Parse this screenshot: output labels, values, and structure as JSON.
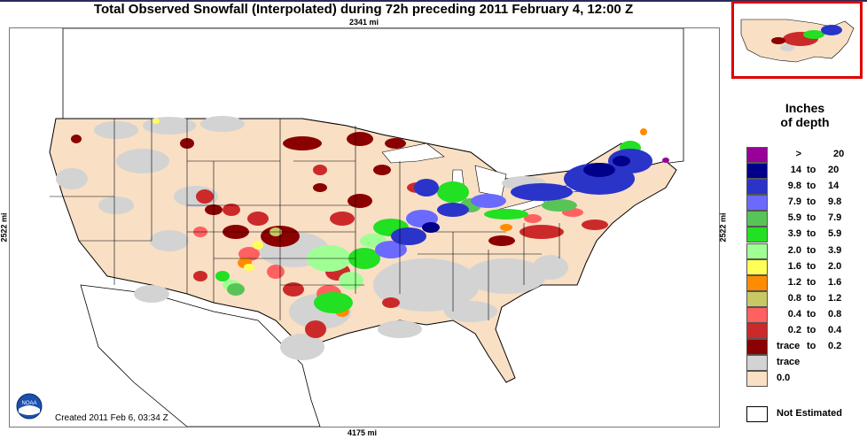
{
  "title": "Total Observed Snowfall (Interpolated) during 72h preceding 2011 February 4, 12:00 Z",
  "distances": {
    "top": "2341 mi",
    "bottom": "4175 mi",
    "left": "2522 mi",
    "right": "2522 mi"
  },
  "created": "Created 2011 Feb 6, 03:34 Z",
  "logo_text": "NOAA",
  "legend": {
    "title_line1": "Inches",
    "title_line2": "of depth",
    "rows": [
      {
        "lo": ">",
        "to": "",
        "hi": "20",
        "color": "#990099"
      },
      {
        "lo": "14",
        "to": "to",
        "hi": "20",
        "color": "#00008b"
      },
      {
        "lo": "9.8",
        "to": "to",
        "hi": "14",
        "color": "#2a34c8"
      },
      {
        "lo": "7.9",
        "to": "to",
        "hi": "9.8",
        "color": "#6a6aff"
      },
      {
        "lo": "5.9",
        "to": "to",
        "hi": "7.9",
        "color": "#58c458"
      },
      {
        "lo": "3.9",
        "to": "to",
        "hi": "5.9",
        "color": "#22e022"
      },
      {
        "lo": "2.0",
        "to": "to",
        "hi": "3.9",
        "color": "#a0ff94"
      },
      {
        "lo": "1.6",
        "to": "to",
        "hi": "2.0",
        "color": "#ffff55"
      },
      {
        "lo": "1.2",
        "to": "to",
        "hi": "1.6",
        "color": "#ff8c00"
      },
      {
        "lo": "0.8",
        "to": "to",
        "hi": "1.2",
        "color": "#c8c864"
      },
      {
        "lo": "0.4",
        "to": "to",
        "hi": "0.8",
        "color": "#ff6060"
      },
      {
        "lo": "0.2",
        "to": "to",
        "hi": "0.4",
        "color": "#cc2a2a"
      },
      {
        "lo": "trace",
        "to": "to",
        "hi": "0.2",
        "color": "#8b0000"
      },
      {
        "lo": "trace",
        "to": "",
        "hi": "",
        "color": "#d3d3d3"
      },
      {
        "lo": "0.0",
        "to": "",
        "hi": "",
        "color": "#f9dfc4"
      }
    ],
    "not_estimated_label": "Not Estimated"
  }
}
